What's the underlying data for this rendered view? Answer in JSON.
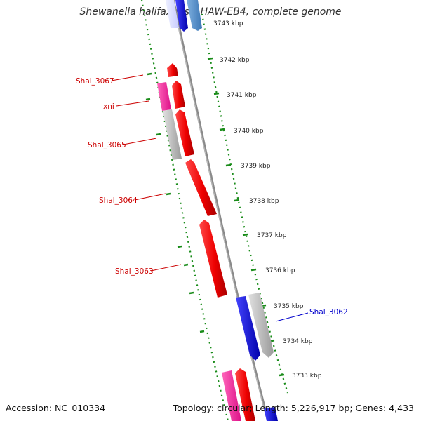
{
  "title": "Shewanella halifaxensis HAW-EB4, complete genome",
  "footer": {
    "accession": "Accession: NC_010334",
    "stats": "Topology: circular; Length: 5,226,917 bp; Genes: 4,433"
  },
  "ticks": [
    "3743 kbp",
    "3742 kbp",
    "3741 kbp",
    "3740 kbp",
    "3739 kbp",
    "3738 kbp",
    "3737 kbp",
    "3736 kbp",
    "3735 kbp",
    "3734 kbp",
    "3733 kbp"
  ],
  "gene_labels": [
    {
      "text": "Shal_3067",
      "color": "#cc0000"
    },
    {
      "text": "xni",
      "color": "#cc0000"
    },
    {
      "text": "Shal_3065",
      "color": "#cc0000"
    },
    {
      "text": "Shal_3064",
      "color": "#cc0000"
    },
    {
      "text": "Shal_3063",
      "color": "#cc0000"
    },
    {
      "text": "Shal_3062",
      "color": "#0000cc"
    }
  ],
  "colors": {
    "forward_cds": "#ff0000",
    "reverse_cds": "#0000ff",
    "forward_rna": "#ff3399",
    "gray_feature": "#bbbbbb",
    "backbone": "#888888",
    "ticks": "#1a8c1a"
  }
}
